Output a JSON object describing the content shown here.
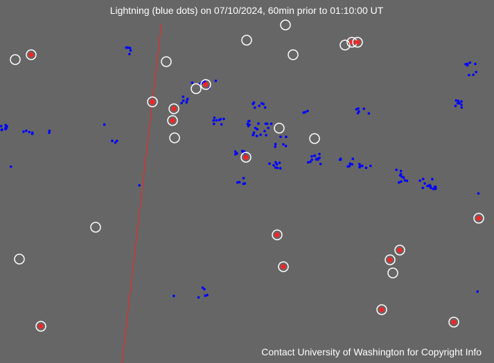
{
  "title": "Lightning (blue dots) on 07/10/2024, 60min prior to 01:10:00 UT",
  "footer": "Contact University of Washington for Copyright Info"
}
